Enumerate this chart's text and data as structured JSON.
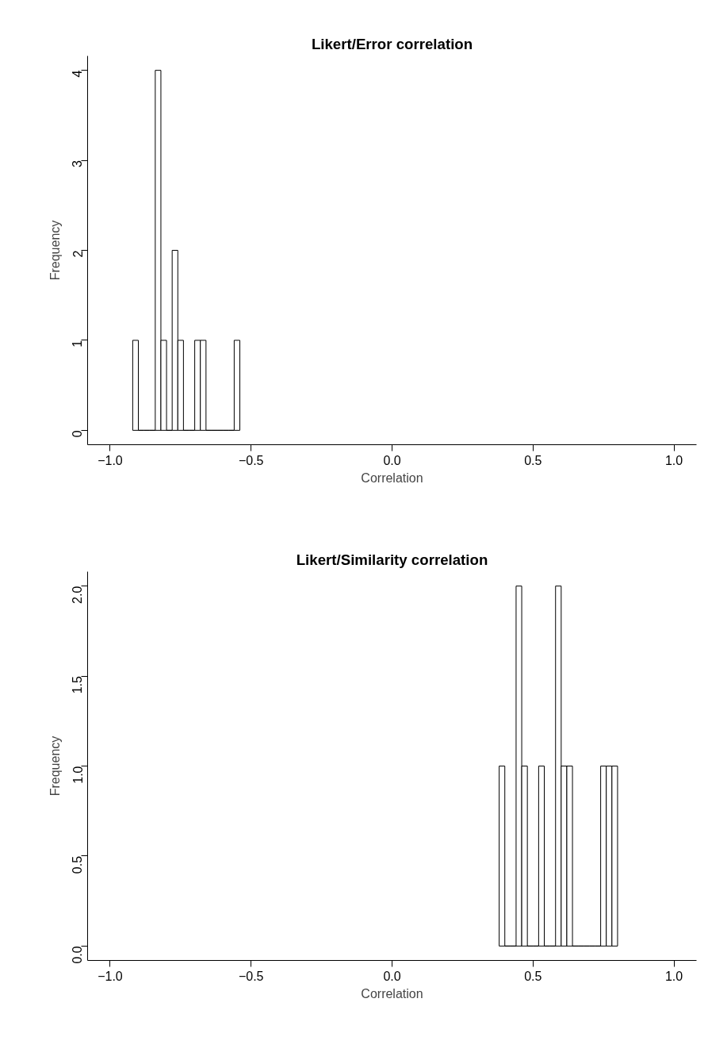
{
  "chart_data": [
    {
      "type": "histogram",
      "title": "Likert/Error correlation",
      "xlabel": "Correlation",
      "ylabel": "Frequency",
      "bins": [
        -0.92,
        -0.9,
        -0.88,
        -0.86,
        -0.84,
        -0.82,
        -0.8,
        -0.78,
        -0.76,
        -0.74,
        -0.72,
        -0.7,
        -0.68,
        -0.66,
        -0.64,
        -0.62,
        -0.6,
        -0.58,
        -0.56,
        -0.54
      ],
      "values": [
        1,
        0,
        0,
        0,
        4,
        1,
        0,
        2,
        1,
        0,
        0,
        1,
        1,
        0,
        0,
        0,
        0,
        0,
        1
      ],
      "xlim": [
        -1.08,
        1.08
      ],
      "ylim": [
        -0.16,
        4.16
      ],
      "xticks": [
        {
          "value": -1,
          "label": "−1.0"
        },
        {
          "value": -0.5,
          "label": "−0.5"
        },
        {
          "value": 0,
          "label": "0.0"
        },
        {
          "value": 0.5,
          "label": "0.5"
        },
        {
          "value": 1,
          "label": "1.0"
        }
      ],
      "yticks": [
        0,
        1,
        2,
        3,
        4
      ],
      "grid": false
    },
    {
      "type": "histogram",
      "title": "Likert/Similarity correlation",
      "xlabel": "Correlation",
      "ylabel": "Frequency",
      "bins": [
        0.38,
        0.4,
        0.42,
        0.44,
        0.46,
        0.48,
        0.5,
        0.52,
        0.54,
        0.56,
        0.58,
        0.6,
        0.62,
        0.64,
        0.66,
        0.68,
        0.7,
        0.72,
        0.74,
        0.76,
        0.78,
        0.8
      ],
      "values": [
        1,
        0,
        0,
        2,
        1,
        0,
        0,
        1,
        0,
        0,
        2,
        1,
        1,
        0,
        0,
        0,
        0,
        0,
        1,
        1,
        1
      ],
      "xlim": [
        -1.08,
        1.08
      ],
      "ylim": [
        -0.08,
        2.08
      ],
      "xticks": [
        {
          "value": -1,
          "label": "−1.0"
        },
        {
          "value": -0.5,
          "label": "−0.5"
        },
        {
          "value": 0,
          "label": "0.0"
        },
        {
          "value": 0.5,
          "label": "0.5"
        },
        {
          "value": 1,
          "label": "1.0"
        }
      ],
      "yticks": [
        {
          "value": 0,
          "label": "0.0"
        },
        {
          "value": 0.5,
          "label": "0.5"
        },
        {
          "value": 1,
          "label": "1.0"
        },
        {
          "value": 1.5,
          "label": "1.5"
        },
        {
          "value": 2,
          "label": "2.0"
        }
      ],
      "grid": false
    }
  ]
}
